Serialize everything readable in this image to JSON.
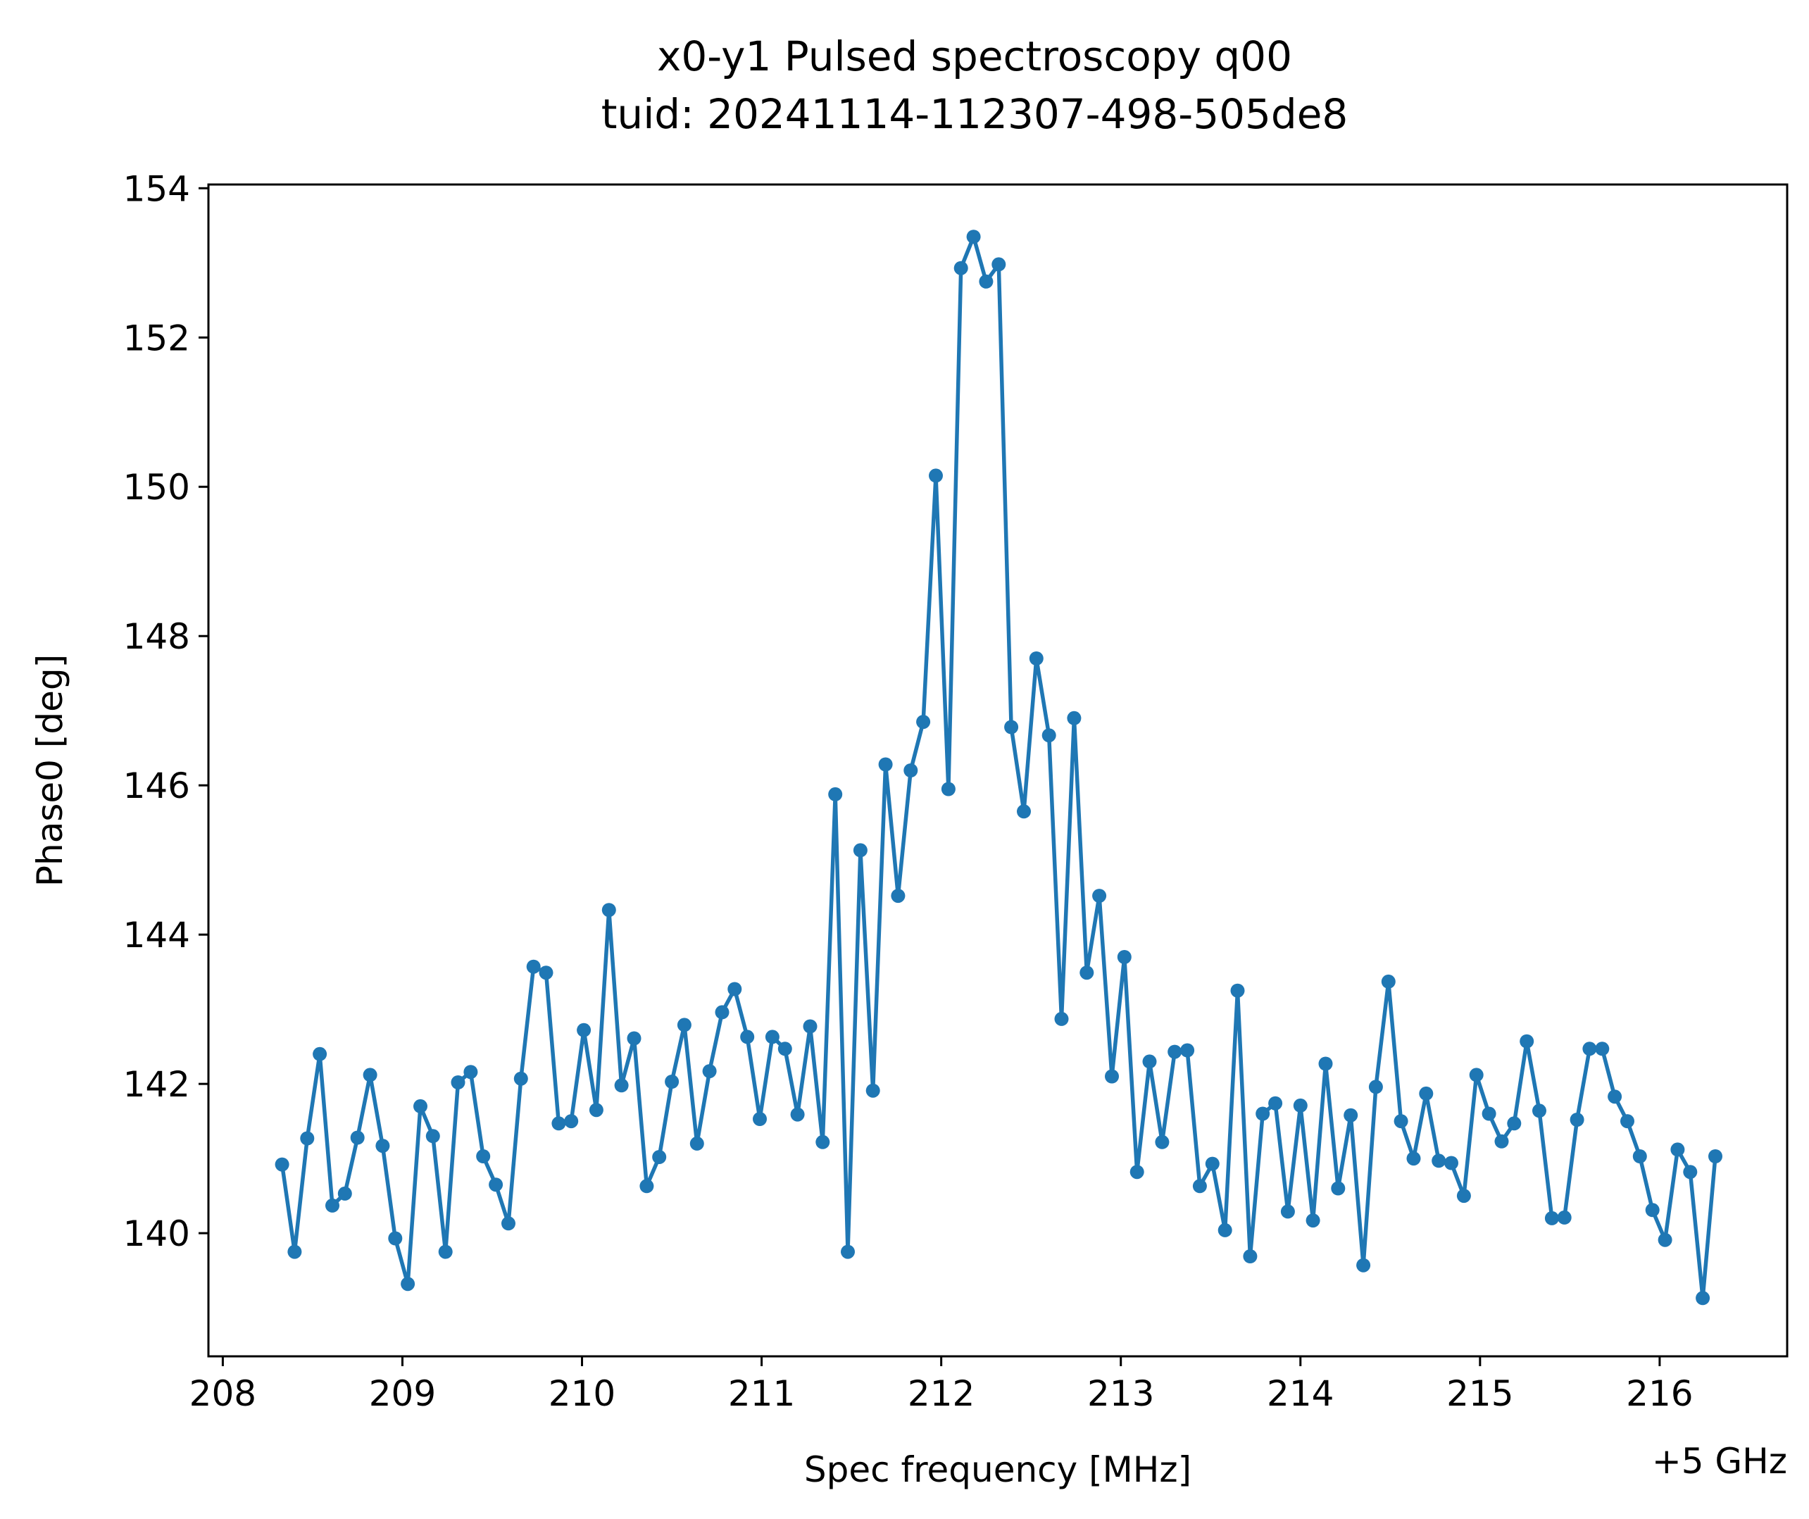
{
  "chart_data": {
    "type": "line",
    "title": "x0-y1 Pulsed spectroscopy q00",
    "subtitle": "tuid: 20241114-112307-498-505de8",
    "xlabel": "Spec frequency [MHz]",
    "ylabel": "Phase0 [deg]",
    "x_offset_label": "+5 GHz",
    "xlim": [
      207.92,
      216.71
    ],
    "ylim": [
      138.35,
      154.05
    ],
    "xticks": [
      208,
      209,
      210,
      211,
      212,
      213,
      214,
      215,
      216
    ],
    "yticks": [
      140,
      142,
      144,
      146,
      148,
      150,
      152,
      154
    ],
    "grid": false,
    "line_color": "#1f77b4",
    "marker": "circle",
    "series": [
      {
        "x": [
          208.33,
          208.4,
          208.47,
          208.54,
          208.61,
          208.68,
          208.75,
          208.82,
          208.89,
          208.96,
          209.03,
          209.1,
          209.17,
          209.24,
          209.31,
          209.38,
          209.45,
          209.52,
          209.59,
          209.66,
          209.73,
          209.8,
          209.87,
          209.94,
          210.01,
          210.08,
          210.15,
          210.22,
          210.29,
          210.36,
          210.43,
          210.5,
          210.57,
          210.64,
          210.71,
          210.78,
          210.85,
          210.92,
          210.99,
          211.06,
          211.13,
          211.2,
          211.27,
          211.34,
          211.41,
          211.48,
          211.55,
          211.62,
          211.69,
          211.76,
          211.83,
          211.9,
          211.97,
          212.04,
          212.11,
          212.18,
          212.25,
          212.32,
          212.39,
          212.46,
          212.53,
          212.6,
          212.67,
          212.74,
          212.81,
          212.88,
          212.95,
          213.02,
          213.09,
          213.16,
          213.23,
          213.3,
          213.37,
          213.44,
          213.51,
          213.58,
          213.65,
          213.72,
          213.79,
          213.86,
          213.93,
          214.0,
          214.07,
          214.14,
          214.21,
          214.28,
          214.35,
          214.42,
          214.49,
          214.56,
          214.63,
          214.7,
          214.77,
          214.84,
          214.91,
          214.98,
          215.05,
          215.12,
          215.19,
          215.26,
          215.33,
          215.4,
          215.47,
          215.54,
          215.61,
          215.68,
          215.75,
          215.82,
          215.89,
          215.96,
          216.03,
          216.1,
          216.17,
          216.24,
          216.31
        ],
        "y": [
          140.92,
          139.75,
          141.27,
          142.4,
          140.37,
          140.53,
          141.28,
          142.12,
          141.17,
          139.93,
          139.32,
          141.7,
          141.3,
          139.75,
          142.02,
          142.16,
          141.03,
          140.65,
          140.13,
          142.07,
          143.57,
          143.49,
          141.47,
          141.5,
          142.72,
          141.65,
          144.33,
          141.98,
          142.61,
          140.63,
          141.02,
          142.03,
          142.79,
          141.2,
          142.17,
          142.96,
          143.27,
          142.63,
          141.53,
          142.63,
          142.47,
          141.59,
          142.77,
          141.22,
          145.88,
          139.75,
          145.13,
          141.91,
          146.28,
          144.52,
          146.2,
          146.85,
          150.15,
          145.95,
          152.93,
          153.35,
          152.75,
          152.98,
          146.78,
          145.65,
          147.7,
          146.67,
          142.87,
          146.9,
          143.49,
          144.52,
          142.1,
          143.7,
          140.82,
          142.3,
          141.22,
          142.43,
          142.45,
          140.63,
          140.93,
          140.04,
          143.25,
          139.69,
          141.6,
          141.74,
          140.29,
          141.71,
          140.17,
          142.27,
          140.6,
          141.58,
          139.57,
          141.96,
          143.37,
          141.5,
          141.0,
          141.87,
          140.97,
          140.94,
          140.5,
          142.12,
          141.6,
          141.23,
          141.47,
          142.57,
          141.64,
          140.2,
          140.21,
          141.52,
          142.47,
          142.47,
          141.83,
          141.5,
          141.03,
          140.31,
          139.91,
          141.12,
          140.82,
          139.13,
          141.03
        ]
      }
    ]
  }
}
